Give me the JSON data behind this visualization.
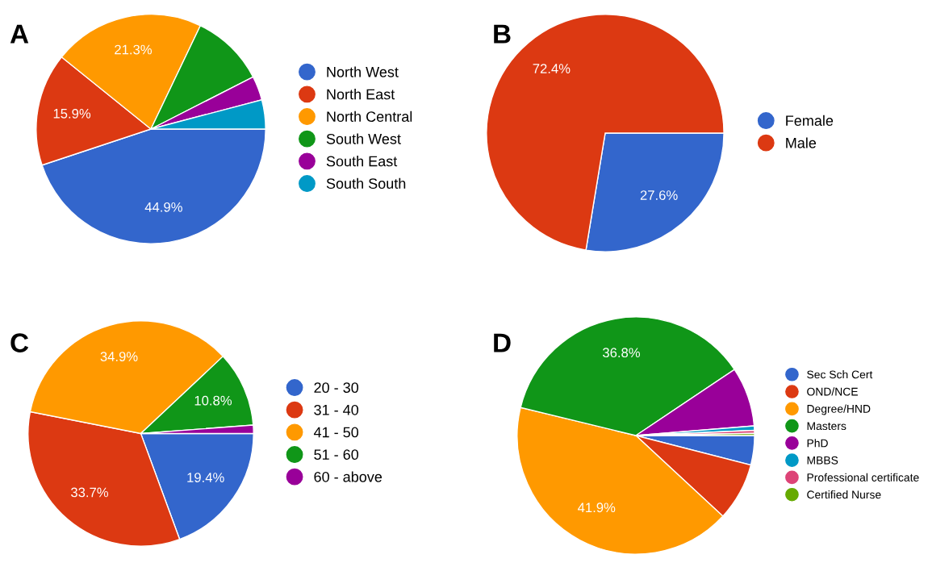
{
  "chart_data": [
    {
      "type": "pie",
      "title": "A",
      "categories": [
        "North West",
        "North East",
        "North Central",
        "South West",
        "South East",
        "South South"
      ],
      "values": [
        44.9,
        15.9,
        21.3,
        10.4,
        3.4,
        4.1
      ],
      "colors": [
        "#3366cc",
        "#dc3912",
        "#ff9900",
        "#109618",
        "#990099",
        "#0099c6"
      ],
      "value_labels": [
        "44.9%",
        "15.9%",
        "21.3%",
        null,
        null,
        null
      ],
      "legend": "right"
    },
    {
      "type": "pie",
      "title": "B",
      "categories": [
        "Female",
        "Male"
      ],
      "values": [
        27.6,
        72.4
      ],
      "colors": [
        "#3366cc",
        "#dc3912"
      ],
      "value_labels": [
        "27.6%",
        "72.4%"
      ],
      "legend": "right"
    },
    {
      "type": "pie",
      "title": "C",
      "categories": [
        "20 - 30",
        "31 - 40",
        "41 - 50",
        "51 - 60",
        "60 - above"
      ],
      "values": [
        19.4,
        33.7,
        34.9,
        10.8,
        1.2
      ],
      "colors": [
        "#3366cc",
        "#dc3912",
        "#ff9900",
        "#109618",
        "#990099"
      ],
      "value_labels": [
        "19.4%",
        "33.7%",
        "34.9%",
        "10.8%",
        null
      ],
      "legend": "right"
    },
    {
      "type": "pie",
      "title": "D",
      "categories": [
        "Sec Sch Cert",
        "OND/NCE",
        "Degree/HND",
        "Masters",
        "PhD",
        "MBBS",
        "Professional certificate",
        "Certified Nurse"
      ],
      "values": [
        4.0,
        7.9,
        41.9,
        36.8,
        8.1,
        0.6,
        0.4,
        0.3
      ],
      "colors": [
        "#3366cc",
        "#dc3912",
        "#ff9900",
        "#109618",
        "#990099",
        "#0099c6",
        "#dd4477",
        "#66aa00"
      ],
      "value_labels": [
        null,
        null,
        "41.9%",
        "36.8%",
        null,
        null,
        null,
        null
      ],
      "legend": "right"
    }
  ]
}
